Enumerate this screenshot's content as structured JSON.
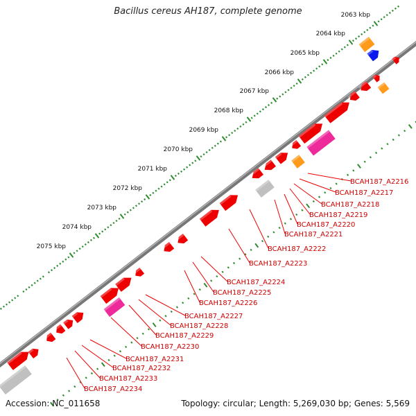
{
  "title": "Bacillus cereus AH187, complete genome",
  "accession_text": "Accession: NC_011658",
  "summary_text": "Topology: circular; Length: 5,269,030 bp; Genes: 5,569",
  "colors": {
    "backbone": "#8a8a8a",
    "ticks": "#2e8b2e",
    "gene": "#ee0000",
    "label_line": "#ee0000",
    "label_text": "#cc0000",
    "pink": "#ee2a9a",
    "orange": "#ff9a1a",
    "blue": "#0a1aee",
    "gray": "#c0c0c0"
  },
  "kbp_labels": [
    "2063 kbp",
    "2064 kbp",
    "2065 kbp",
    "2066 kbp",
    "2067 kbp",
    "2068 kbp",
    "2069 kbp",
    "2070 kbp",
    "2071 kbp",
    "2072 kbp",
    "2073 kbp",
    "2074 kbp",
    "2075 kbp"
  ],
  "gene_labels": [
    "BCAH187_A2216",
    "BCAH187_A2217",
    "BCAH187_A2218",
    "BCAH187_A2219",
    "BCAH187_A2220",
    "BCAH187_A2221",
    "BCAH187_A2222",
    "BCAH187_A2223",
    "BCAH187_A2224",
    "BCAH187_A2225",
    "BCAH187_A2226",
    "BCAH187_A2227",
    "BCAH187_A2228",
    "BCAH187_A2229",
    "BCAH187_A2230",
    "BCAH187_A2231",
    "BCAH187_A2232",
    "BCAH187_A2233",
    "BCAH187_A2234"
  ]
}
